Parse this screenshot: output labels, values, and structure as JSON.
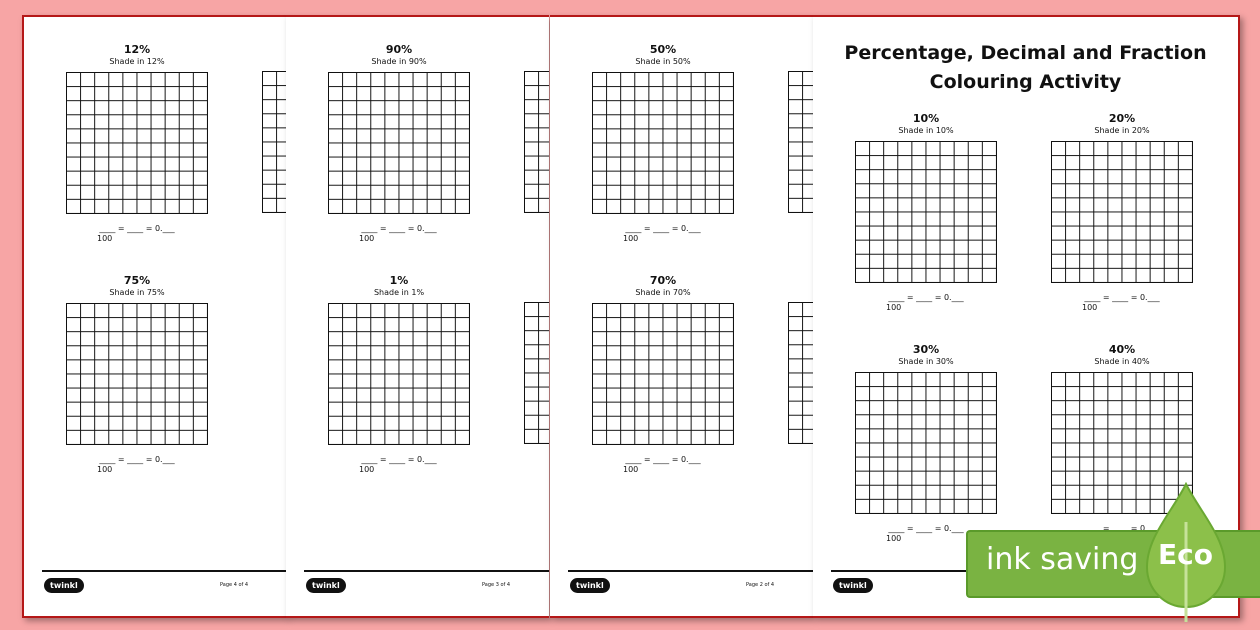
{
  "formula": {
    "blanks": "____ = ____ = 0.___",
    "denominator": "100"
  },
  "logo_text": "twinkl",
  "back_pages": [
    {
      "page_label": "Page 4 of 4",
      "sections": [
        {
          "percent": "12%",
          "instruction": "Shade in 12%"
        },
        {
          "percent": "75%",
          "instruction": "Shade in 75%"
        }
      ]
    },
    {
      "page_label": "Page 3 of 4",
      "sections": [
        {
          "percent": "90%",
          "instruction": "Shade in 90%"
        },
        {
          "percent": "1%",
          "instruction": "Shade in 1%"
        }
      ]
    },
    {
      "page_label": "Page 2 of 4",
      "sections": [
        {
          "percent": "50%",
          "instruction": "Shade in 50%"
        },
        {
          "percent": "70%",
          "instruction": "Shade in 70%"
        }
      ]
    }
  ],
  "front_page": {
    "title_line1": "Percentage, Decimal and Fraction",
    "title_line2": "Colouring Activity",
    "sections": [
      {
        "percent": "10%",
        "instruction": "Shade in 10%"
      },
      {
        "percent": "20%",
        "instruction": "Shade in 20%"
      },
      {
        "percent": "30%",
        "instruction": "Shade in 30%"
      },
      {
        "percent": "40%",
        "instruction": "Shade in 40%"
      }
    ]
  },
  "badge": {
    "text": "ink saving",
    "label": "Eco",
    "color": "#7ab342"
  }
}
